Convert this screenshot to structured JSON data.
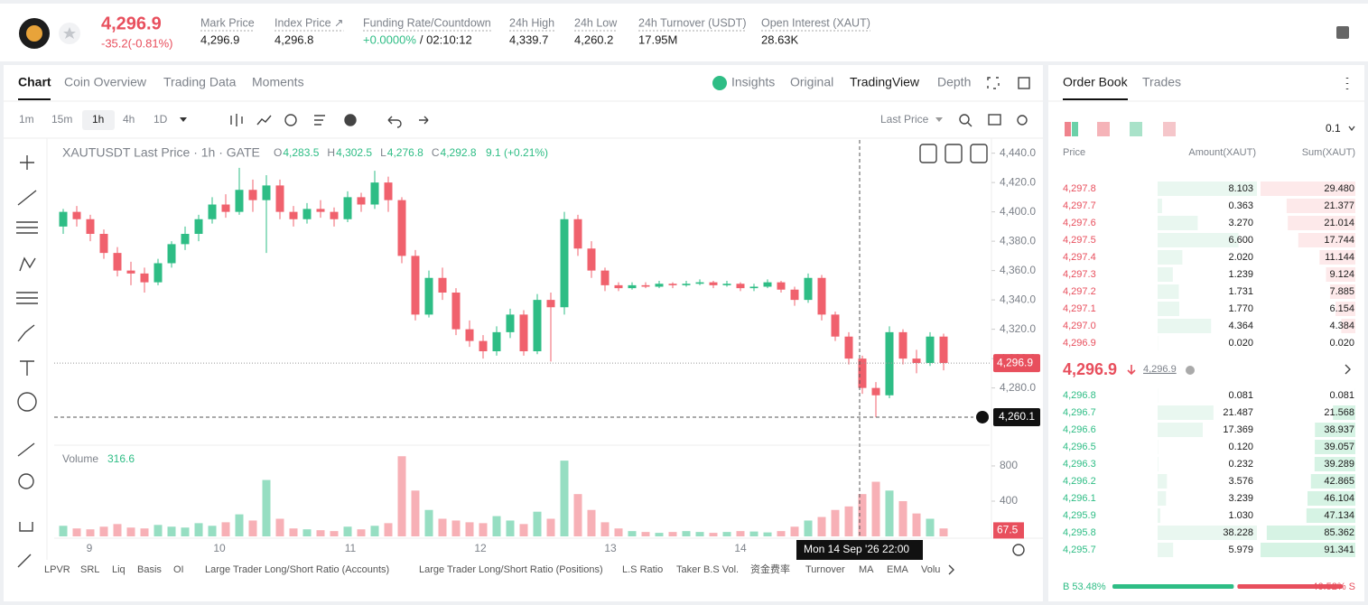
{
  "header": {
    "price": "4,296.9",
    "change": "-35.2(-0.81%)",
    "stats": [
      {
        "label": "Mark Price",
        "value": "4,296.9"
      },
      {
        "label": "Index Price ↗",
        "value": "4,296.8"
      },
      {
        "label": "Funding Rate/Countdown",
        "value": "+0.0000%",
        "countdown": "/ 02:10:12"
      },
      {
        "label": "24h High",
        "value": "4,339.7"
      },
      {
        "label": "24h Low",
        "value": "4,260.2"
      },
      {
        "label": "24h Turnover (USDT)",
        "value": "17.95M"
      },
      {
        "label": "Open Interest (XAUT)",
        "value": "28.63K"
      }
    ]
  },
  "tabs": [
    "Chart",
    "Coin Overview",
    "Trading Data",
    "Moments"
  ],
  "views": [
    "Insights",
    "Original",
    "TradingView",
    "Depth"
  ],
  "intervals": [
    "1m",
    "15m",
    "1h",
    "4h",
    "1D"
  ],
  "price_source": "Last Price",
  "legend": {
    "title": "XAUTUSDT Last Price · 1h · GATE",
    "ohlc": [
      {
        "key": "O",
        "value": "4,283.5"
      },
      {
        "key": "H",
        "value": "4,302.5"
      },
      {
        "key": "L",
        "value": "4,276.8"
      },
      {
        "key": "C",
        "value": "4,292.8"
      }
    ],
    "change": "9.1 (+0.21%)"
  },
  "volume_legend": {
    "label": "Volume",
    "value": "316.6"
  },
  "chart_data": {
    "type": "candlestick",
    "x_labels": [
      "9",
      "10",
      "11",
      "12",
      "13",
      "14"
    ],
    "ylim": [
      4241,
      4449
    ],
    "yticks": [
      {
        "value": 4280,
        "label": "4,280.0"
      },
      {
        "value": 4300,
        "label": "4,300.0"
      },
      {
        "value": 4320,
        "label": "4,320.0"
      },
      {
        "value": 4340,
        "label": "4,340.0"
      },
      {
        "value": 4360,
        "label": "4,360.0"
      },
      {
        "value": 4380,
        "label": "4,380.0"
      },
      {
        "value": 4400,
        "label": "4,400.0"
      },
      {
        "value": 4420,
        "label": "4,420.0"
      },
      {
        "value": 4440,
        "label": "4,440.0"
      }
    ],
    "up_color": "#2ebd85",
    "down_color": "#f0616d",
    "candles": [
      [
        4390,
        4402,
        4385,
        4400
      ],
      [
        4400,
        4404,
        4390,
        4395
      ],
      [
        4395,
        4398,
        4380,
        4385
      ],
      [
        4385,
        4388,
        4368,
        4372
      ],
      [
        4372,
        4376,
        4356,
        4360
      ],
      [
        4360,
        4366,
        4350,
        4358
      ],
      [
        4358,
        4362,
        4345,
        4352
      ],
      [
        4352,
        4368,
        4350,
        4365
      ],
      [
        4365,
        4380,
        4362,
        4378
      ],
      [
        4378,
        4390,
        4374,
        4385
      ],
      [
        4385,
        4398,
        4380,
        4395
      ],
      [
        4395,
        4410,
        4392,
        4405
      ],
      [
        4405,
        4412,
        4396,
        4400
      ],
      [
        4400,
        4430,
        4398,
        4415
      ],
      [
        4415,
        4422,
        4400,
        4408
      ],
      [
        4408,
        4425,
        4372,
        4418
      ],
      [
        4418,
        4422,
        4395,
        4400
      ],
      [
        4400,
        4404,
        4390,
        4395
      ],
      [
        4395,
        4406,
        4392,
        4402
      ],
      [
        4402,
        4408,
        4396,
        4400
      ],
      [
        4400,
        4403,
        4390,
        4395
      ],
      [
        4395,
        4414,
        4393,
        4410
      ],
      [
        4410,
        4413,
        4400,
        4405
      ],
      [
        4405,
        4428,
        4402,
        4420
      ],
      [
        4420,
        4424,
        4400,
        4408
      ],
      [
        4408,
        4410,
        4365,
        4370
      ],
      [
        4370,
        4374,
        4326,
        4330
      ],
      [
        4330,
        4360,
        4328,
        4355
      ],
      [
        4355,
        4362,
        4340,
        4345
      ],
      [
        4345,
        4348,
        4316,
        4320
      ],
      [
        4320,
        4326,
        4308,
        4312
      ],
      [
        4312,
        4316,
        4300,
        4305
      ],
      [
        4305,
        4322,
        4302,
        4318
      ],
      [
        4318,
        4334,
        4314,
        4330
      ],
      [
        4330,
        4333,
        4302,
        4305
      ],
      [
        4305,
        4344,
        4303,
        4340
      ],
      [
        4340,
        4345,
        4298,
        4335
      ],
      [
        4335,
        4400,
        4330,
        4395
      ],
      [
        4395,
        4398,
        4370,
        4375
      ],
      [
        4375,
        4380,
        4355,
        4360
      ],
      [
        4360,
        4362,
        4346,
        4350
      ],
      [
        4350,
        4352,
        4346,
        4348
      ],
      [
        4348,
        4352,
        4347,
        4350
      ],
      [
        4350,
        4352,
        4348,
        4349
      ],
      [
        4349,
        4353,
        4348,
        4351
      ],
      [
        4351,
        4352,
        4348,
        4350
      ],
      [
        4350,
        4353,
        4349,
        4351
      ],
      [
        4351,
        4354,
        4350,
        4352
      ],
      [
        4352,
        4353,
        4348,
        4350
      ],
      [
        4350,
        4353,
        4349,
        4351
      ],
      [
        4351,
        4352,
        4346,
        4348
      ],
      [
        4348,
        4351,
        4346,
        4349
      ],
      [
        4349,
        4354,
        4348,
        4352
      ],
      [
        4352,
        4353,
        4345,
        4347
      ],
      [
        4347,
        4349,
        4336,
        4340
      ],
      [
        4340,
        4358,
        4338,
        4355
      ],
      [
        4355,
        4357,
        4326,
        4330
      ],
      [
        4330,
        4332,
        4312,
        4315
      ],
      [
        4315,
        4318,
        4296,
        4300
      ],
      [
        4300,
        4302,
        4276,
        4280
      ],
      [
        4280,
        4284,
        4260,
        4275
      ],
      [
        4275,
        4322,
        4273,
        4318
      ],
      [
        4318,
        4320,
        4296,
        4300
      ],
      [
        4300,
        4306,
        4290,
        4297
      ],
      [
        4297,
        4318,
        4295,
        4315
      ],
      [
        4315,
        4317,
        4292,
        4297
      ]
    ],
    "last_price": {
      "value": 4296.9,
      "label": "4,296.9"
    },
    "crosshair": {
      "value": 4260.1,
      "label": "4,260.1",
      "time": "Mon 14 Sep '26   22:00"
    },
    "volume": {
      "ylim": [
        0,
        1015
      ],
      "yticks": [
        400,
        800
      ],
      "values": [
        120,
        90,
        80,
        110,
        140,
        100,
        90,
        130,
        110,
        100,
        150,
        120,
        160,
        250,
        180,
        640,
        200,
        90,
        80,
        70,
        60,
        110,
        80,
        120,
        150,
        910,
        520,
        300,
        200,
        180,
        160,
        150,
        230,
        180,
        140,
        280,
        200,
        860,
        480,
        300,
        160,
        90,
        60,
        50,
        40,
        50,
        60,
        50,
        40,
        50,
        60,
        55,
        45,
        60,
        110,
        180,
        220,
        300,
        340,
        480,
        620,
        520,
        400,
        260,
        200,
        90
      ],
      "last": {
        "value": 67.5,
        "label": "67.5"
      }
    }
  },
  "indicators": [
    "LPVR",
    "SRL",
    "Liq",
    "Basis",
    "OI",
    "Large Trader Long/Short Ratio (Accounts)",
    "Large Trader Long/Short Ratio (Positions)",
    "L.S Ratio",
    "Taker B.S Vol.",
    "资金费率",
    "Turnover",
    "MA",
    "EMA",
    "Volu"
  ],
  "order_book": {
    "tabs": [
      "Order Book",
      "Trades"
    ],
    "precision": "0.1",
    "columns": [
      "Price",
      "Amount(XAUT)",
      "Sum(XAUT)"
    ],
    "asks": [
      [
        "4,297.8",
        "8.103",
        "29.480"
      ],
      [
        "4,297.7",
        "0.363",
        "21.377"
      ],
      [
        "4,297.6",
        "3.270",
        "21.014"
      ],
      [
        "4,297.5",
        "6.600",
        "17.744"
      ],
      [
        "4,297.4",
        "2.020",
        "11.144"
      ],
      [
        "4,297.3",
        "1.239",
        "9.124"
      ],
      [
        "4,297.2",
        "1.731",
        "7.885"
      ],
      [
        "4,297.1",
        "1.770",
        "6.154"
      ],
      [
        "4,297.0",
        "4.364",
        "4.384"
      ],
      [
        "4,296.9",
        "0.020",
        "0.020"
      ]
    ],
    "mid": {
      "price": "4,296.9",
      "mark": "4,296.9"
    },
    "bids": [
      [
        "4,296.8",
        "0.081",
        "0.081"
      ],
      [
        "4,296.7",
        "21.487",
        "21.568"
      ],
      [
        "4,296.6",
        "17.369",
        "38.937"
      ],
      [
        "4,296.5",
        "0.120",
        "39.057"
      ],
      [
        "4,296.3",
        "0.232",
        "39.289"
      ],
      [
        "4,296.2",
        "3.576",
        "42.865"
      ],
      [
        "4,296.1",
        "3.239",
        "46.104"
      ],
      [
        "4,295.9",
        "1.030",
        "47.134"
      ],
      [
        "4,295.8",
        "38.228",
        "85.362"
      ],
      [
        "4,295.7",
        "5.979",
        "91.341"
      ]
    ],
    "ratio": {
      "buy": {
        "value": 53.48,
        "label": "B 53.48%"
      },
      "sell": {
        "value": 46.52,
        "label": "46.52% S"
      }
    }
  }
}
